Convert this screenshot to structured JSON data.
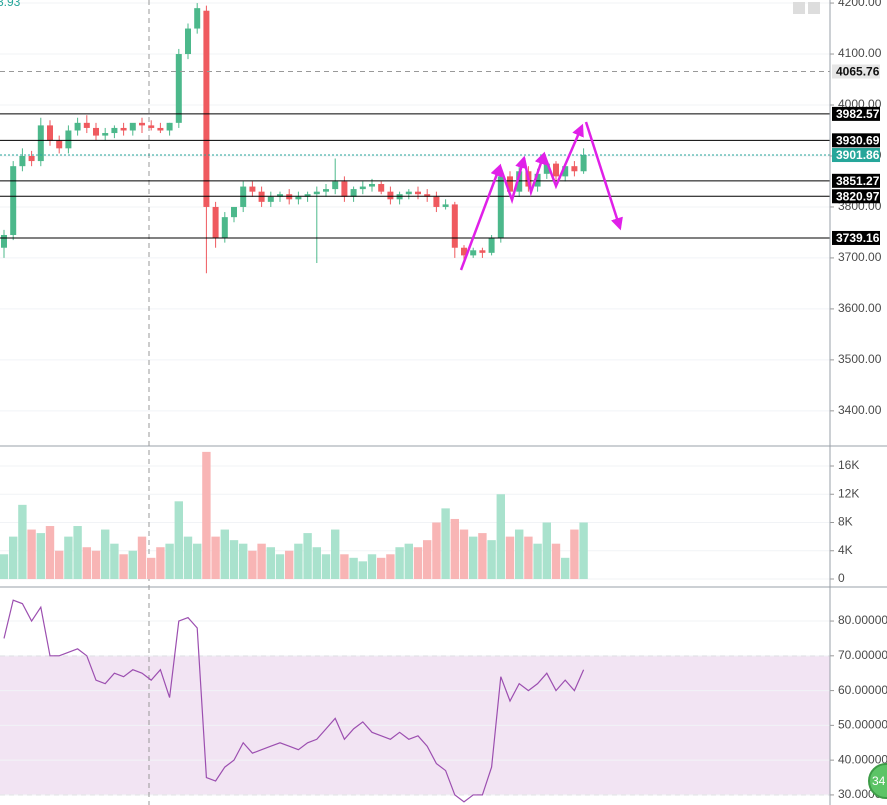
{
  "chart_data": {
    "type": "candlestick",
    "legend_text": "3.93",
    "badge": "34",
    "up_color": "#4cb88b",
    "down_color": "#ef5a5f",
    "grid": true,
    "open": [
      3720,
      3745,
      3880,
      3900,
      3890,
      3960,
      3930,
      3915,
      3950,
      3965,
      3955,
      3940,
      3945,
      3955,
      3950,
      3965,
      3960,
      3955,
      3950,
      3965,
      4100,
      4150,
      4185,
      3800,
      3740,
      3780,
      3800,
      3840,
      3830,
      3810,
      3820,
      3825,
      3815,
      3820,
      3825,
      3830,
      3835,
      3850,
      3820,
      3835,
      3840,
      3845,
      3830,
      3815,
      3825,
      3830,
      3825,
      3820,
      3800,
      3805,
      3720,
      3705,
      3715,
      3710,
      3740,
      3860,
      3830,
      3870,
      3840,
      3865,
      3885,
      3860,
      3880,
      3870
    ],
    "high": [
      3755,
      3890,
      3915,
      3910,
      3975,
      3970,
      3940,
      3960,
      3975,
      3980,
      3965,
      3955,
      3960,
      3965,
      3960,
      3975,
      3970,
      3965,
      3965,
      4110,
      4160,
      4200,
      4195,
      3810,
      3790,
      3800,
      3850,
      3850,
      3840,
      3830,
      3830,
      3835,
      3830,
      3830,
      3840,
      3845,
      3895,
      3860,
      3840,
      3850,
      3855,
      3850,
      3840,
      3830,
      3835,
      3840,
      3835,
      3830,
      3815,
      3810,
      3725,
      3720,
      3720,
      3745,
      3870,
      3870,
      3880,
      3880,
      3875,
      3890,
      3890,
      3885,
      3890,
      3915
    ],
    "low": [
      3700,
      3735,
      3870,
      3880,
      3880,
      3920,
      3905,
      3905,
      3940,
      3945,
      3930,
      3930,
      3935,
      3940,
      3940,
      3945,
      3950,
      3945,
      3940,
      3955,
      4090,
      4140,
      3670,
      3720,
      3730,
      3770,
      3790,
      3820,
      3800,
      3800,
      3810,
      3805,
      3805,
      3810,
      3690,
      3820,
      3825,
      3810,
      3810,
      3825,
      3830,
      3825,
      3805,
      3805,
      3815,
      3815,
      3810,
      3790,
      3795,
      3700,
      3695,
      3700,
      3700,
      3705,
      3730,
      3820,
      3820,
      3830,
      3830,
      3855,
      3850,
      3850,
      3860,
      3865
    ],
    "close": [
      3745,
      3880,
      3900,
      3890,
      3960,
      3930,
      3915,
      3950,
      3965,
      3955,
      3940,
      3945,
      3955,
      3950,
      3965,
      3960,
      3955,
      3950,
      3965,
      4100,
      4150,
      4190,
      3800,
      3740,
      3780,
      3800,
      3840,
      3830,
      3810,
      3820,
      3825,
      3815,
      3820,
      3825,
      3830,
      3835,
      3850,
      3820,
      3835,
      3840,
      3845,
      3830,
      3815,
      3825,
      3830,
      3825,
      3820,
      3800,
      3805,
      3720,
      3705,
      3715,
      3710,
      3740,
      3860,
      3830,
      3870,
      3840,
      3865,
      3885,
      3860,
      3880,
      3870,
      3902
    ],
    "ylim": [
      3333,
      4206
    ],
    "yticks": [
      {
        "value": 4200,
        "label": "4200.00"
      },
      {
        "value": 4100,
        "label": "4100.00"
      },
      {
        "value": 4000,
        "label": "4000.00"
      },
      {
        "value": 3900,
        "label": "3900.00"
      },
      {
        "value": 3800,
        "label": "3800.00"
      },
      {
        "value": 3700,
        "label": "3700.00"
      },
      {
        "value": 3600,
        "label": "3600.00"
      },
      {
        "value": 3500,
        "label": "3500.00"
      },
      {
        "value": 3400,
        "label": "3400.00"
      }
    ],
    "levels": [
      {
        "value": 4065.76,
        "color": "#999999",
        "style": "dashed"
      },
      {
        "value": 3982.57,
        "color": "#000000",
        "style": "solid"
      },
      {
        "value": 3930.69,
        "color": "#000000",
        "style": "solid"
      },
      {
        "value": 3901.86,
        "color": "#26a69a",
        "style": "dotted"
      },
      {
        "value": 3851.27,
        "color": "#000000",
        "style": "solid"
      },
      {
        "value": 3820.97,
        "color": "#000000",
        "style": "solid"
      },
      {
        "value": 3739.16,
        "color": "#000000",
        "style": "solid"
      }
    ],
    "volume": {
      "up_color": "#a9e2cd",
      "down_color": "#f8b5b5",
      "values": [
        3500,
        6000,
        10500,
        7000,
        6500,
        7500,
        4000,
        6000,
        7500,
        4500,
        4000,
        7000,
        5000,
        3500,
        4000,
        6000,
        3000,
        4500,
        5000,
        11000,
        6000,
        5000,
        18000,
        6000,
        7000,
        5500,
        5000,
        4000,
        5000,
        4500,
        3500,
        4000,
        5000,
        6500,
        4500,
        3500,
        7000,
        3500,
        3000,
        2500,
        3500,
        3000,
        3500,
        4500,
        5000,
        4500,
        5500,
        8000,
        10000,
        8500,
        7000,
        6000,
        6500,
        5500,
        12000,
        6000,
        7000,
        6000,
        5000,
        8000,
        5000,
        3000,
        7000,
        8000
      ],
      "ylim": [
        -850,
        18690
      ],
      "yticks": [
        {
          "value": 16000,
          "label": "16K"
        },
        {
          "value": 12000,
          "label": "12K"
        },
        {
          "value": 8000,
          "label": "8K"
        },
        {
          "value": 4000,
          "label": "4K"
        },
        0
      ]
    },
    "rsi": {
      "color": "#9c4fb0",
      "band_color": "#f2e4f3",
      "values": [
        75,
        86,
        85,
        80,
        84,
        70,
        70,
        71,
        72,
        70,
        63,
        62,
        65,
        64,
        66,
        65,
        63,
        66,
        58,
        80,
        81,
        78,
        35,
        34,
        38,
        40,
        45,
        42,
        43,
        44,
        45,
        44,
        43,
        45,
        46,
        49,
        52,
        46,
        49,
        51,
        48,
        47,
        46,
        48,
        46,
        47,
        44,
        39,
        37,
        30,
        28,
        30,
        30,
        38,
        64,
        57,
        62,
        60,
        62,
        65,
        60,
        63,
        60,
        66
      ],
      "band": [
        30,
        70
      ],
      "ylim": [
        27.1,
        89.5
      ],
      "yticks": [
        {
          "value": 80,
          "label": "80.00000"
        },
        {
          "value": 70,
          "label": "70.00000"
        },
        {
          "value": 60,
          "label": "60.00000"
        },
        {
          "value": 50,
          "label": "50.00000"
        },
        {
          "value": 40,
          "label": "40.00000"
        },
        {
          "value": 30,
          "label": "30.00000"
        }
      ]
    }
  }
}
